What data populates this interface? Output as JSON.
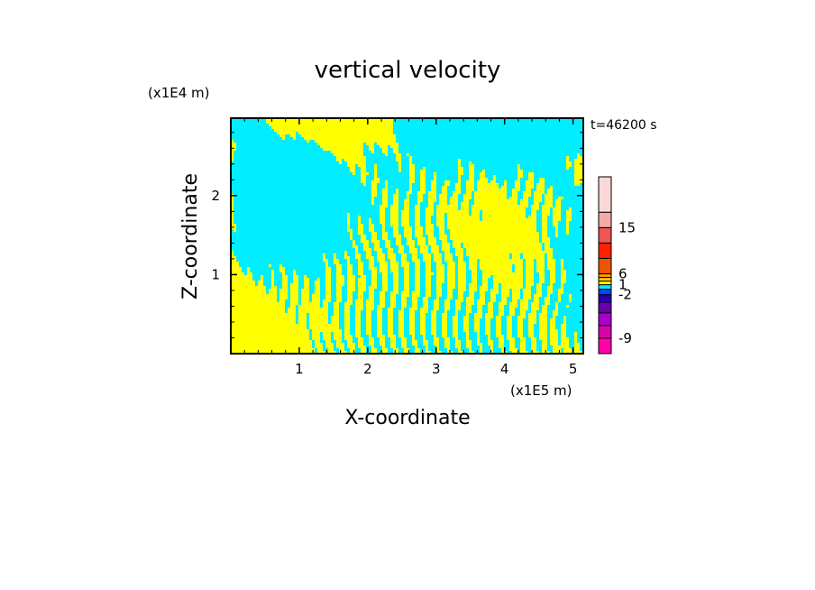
{
  "chart_data": {
    "type": "heatmap",
    "title": "vertical velocity",
    "xlabel": "X-coordinate",
    "ylabel": "Z-coordinate",
    "x_unit": "(x1E5 m)",
    "y_unit": "(x1E4 m)",
    "time_label": "t=46200 s",
    "xlim": [
      0,
      5.15
    ],
    "ylim": [
      0,
      2.98
    ],
    "x_ticks": [
      1,
      2,
      3,
      4,
      5
    ],
    "y_ticks": [
      1,
      2
    ],
    "x_tick_labels": [
      "1",
      "2",
      "3",
      "4",
      "5"
    ],
    "y_tick_labels": [
      "1",
      "2"
    ],
    "field_colors": {
      "negative": "#00eeff",
      "positive": "#ffff00"
    },
    "colorbar": {
      "levels_bottom_to_top": [
        {
          "color": "#ff00aa"
        },
        {
          "color": "#dd00aa"
        },
        {
          "color": "#aa00cc"
        },
        {
          "color": "#6600aa"
        },
        {
          "color": "#2200aa"
        },
        {
          "color": "#0044ff"
        },
        {
          "color": "#00eeff"
        },
        {
          "color": "#ffff00"
        },
        {
          "color": "#ffcc00"
        },
        {
          "color": "#ff9900"
        },
        {
          "color": "#ee5500"
        },
        {
          "color": "#ff2200"
        },
        {
          "color": "#ee5555"
        },
        {
          "color": "#f5aaaa"
        },
        {
          "color": "#fbd8d8"
        }
      ],
      "labels": [
        {
          "text": "15",
          "level_index": 13
        },
        {
          "text": "6",
          "level_index": 10
        },
        {
          "text": "1",
          "level_index": 7
        },
        {
          "text": "-2",
          "level_index": 5
        },
        {
          "text": "-9",
          "level_index": 1
        }
      ]
    }
  }
}
